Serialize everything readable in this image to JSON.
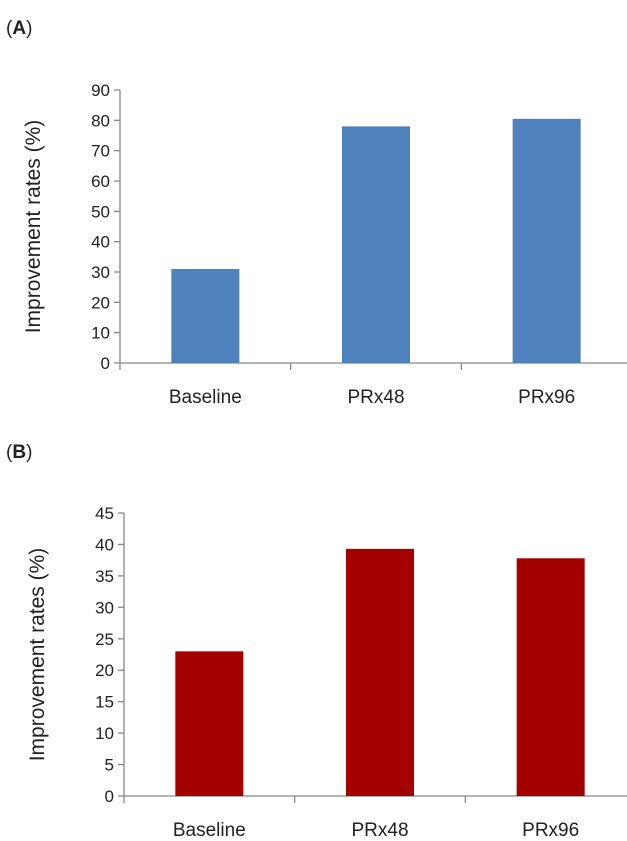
{
  "chart_data": [
    {
      "type": "bar",
      "panel_label": "A",
      "categories": [
        "Baseline",
        "PRx48",
        "PRx96"
      ],
      "values": [
        31,
        78,
        80.5
      ],
      "ylabel": "Improvement rates (%)",
      "ylim": [
        0,
        90
      ],
      "yticks": [
        0,
        10,
        20,
        30,
        40,
        50,
        60,
        70,
        80,
        90
      ],
      "bar_color": "#4f81bd",
      "grid": false
    },
    {
      "type": "bar",
      "panel_label": "B",
      "categories": [
        "Baseline",
        "PRx48",
        "PRx96"
      ],
      "values": [
        23,
        39.3,
        37.8
      ],
      "ylabel": "Improvement rates (%)",
      "ylim": [
        0,
        45
      ],
      "yticks": [
        0,
        5,
        10,
        15,
        20,
        25,
        30,
        35,
        40,
        45
      ],
      "bar_color": "#a50000",
      "grid": false
    }
  ]
}
